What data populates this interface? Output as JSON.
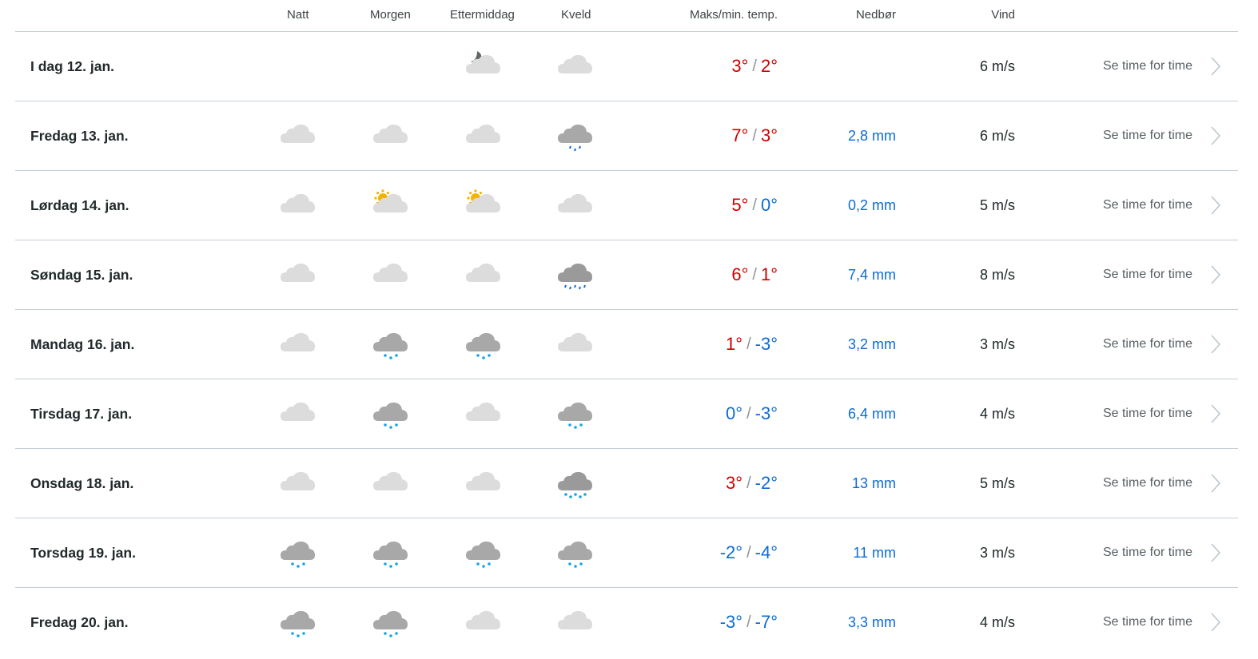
{
  "header": {
    "natt": "Natt",
    "morgen": "Morgen",
    "ettermiddag": "Ettermiddag",
    "kveld": "Kveld",
    "temp": "Maks/min. temp.",
    "precip": "Nedbør",
    "wind": "Vind"
  },
  "colors": {
    "warm": "#d00000",
    "cold": "#0b6bd6",
    "divider": "#c3ced6"
  },
  "rows": [
    {
      "day": "I dag 12. jan.",
      "icons": [
        null,
        null,
        "partly-cloudy-night",
        "cloudy"
      ],
      "max": "3°",
      "min": "2°",
      "max_val": 3,
      "min_val": 2,
      "precip": "",
      "wind": "6 m/s",
      "link": "Se time for time"
    },
    {
      "day": "Fredag 13. jan.",
      "icons": [
        "cloudy",
        "cloudy",
        "cloudy",
        "light-rain"
      ],
      "max": "7°",
      "min": "3°",
      "max_val": 7,
      "min_val": 3,
      "precip": "2,8 mm",
      "wind": "6 m/s",
      "link": "Se time for time"
    },
    {
      "day": "Lørdag 14. jan.",
      "icons": [
        "cloudy",
        "partly-cloudy-day",
        "partly-cloudy-day",
        "cloudy"
      ],
      "max": "5°",
      "min": "0°",
      "max_val": 5,
      "min_val": 0,
      "precip": "0,2 mm",
      "wind": "5 m/s",
      "link": "Se time for time"
    },
    {
      "day": "Søndag 15. jan.",
      "icons": [
        "cloudy",
        "cloudy",
        "cloudy",
        "rain"
      ],
      "max": "6°",
      "min": "1°",
      "max_val": 6,
      "min_val": 1,
      "precip": "7,4 mm",
      "wind": "8 m/s",
      "link": "Se time for time"
    },
    {
      "day": "Mandag 16. jan.",
      "icons": [
        "cloudy",
        "light-snow",
        "light-snow",
        "cloudy"
      ],
      "max": "1°",
      "min": "-3°",
      "max_val": 1,
      "min_val": -3,
      "precip": "3,2 mm",
      "wind": "3 m/s",
      "link": "Se time for time"
    },
    {
      "day": "Tirsdag 17. jan.",
      "icons": [
        "cloudy",
        "light-snow",
        "cloudy",
        "light-snow"
      ],
      "max": "0°",
      "min": "-3°",
      "max_val": 0,
      "min_val": -3,
      "precip": "6,4 mm",
      "wind": "4 m/s",
      "link": "Se time for time"
    },
    {
      "day": "Onsdag 18. jan.",
      "icons": [
        "cloudy",
        "cloudy",
        "cloudy",
        "snow"
      ],
      "max": "3°",
      "min": "-2°",
      "max_val": 3,
      "min_val": -2,
      "precip": "13 mm",
      "wind": "5 m/s",
      "link": "Se time for time"
    },
    {
      "day": "Torsdag 19. jan.",
      "icons": [
        "light-snow",
        "light-snow",
        "light-snow",
        "light-snow"
      ],
      "max": "-2°",
      "min": "-4°",
      "max_val": -2,
      "min_val": -4,
      "precip": "11 mm",
      "wind": "3 m/s",
      "link": "Se time for time"
    },
    {
      "day": "Fredag 20. jan.",
      "icons": [
        "light-snow",
        "light-snow",
        "cloudy",
        "cloudy"
      ],
      "max": "-3°",
      "min": "-7°",
      "max_val": -3,
      "min_val": -7,
      "precip": "3,3 mm",
      "wind": "4 m/s",
      "link": "Se time for time"
    }
  ]
}
